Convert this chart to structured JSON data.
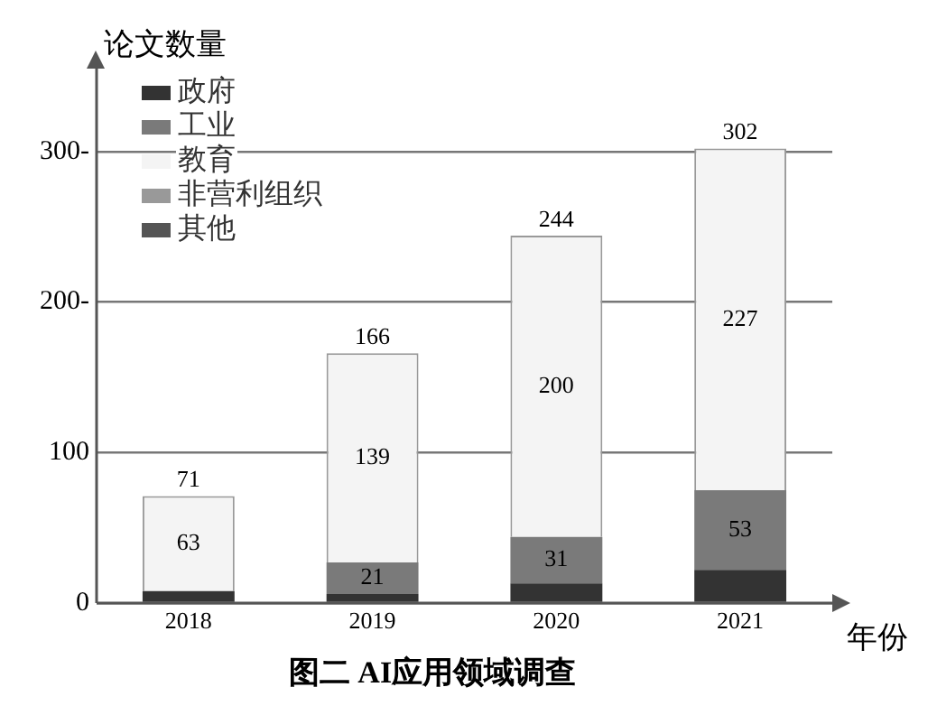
{
  "chart_data": {
    "type": "bar",
    "title": "图二 AI应用领域调查",
    "xlabel": "年份",
    "ylabel": "论文数量",
    "categories": [
      "2018",
      "2019",
      "2020",
      "2021"
    ],
    "stacked": true,
    "series": [
      {
        "name": "政府",
        "color": "#333333",
        "values": [
          8,
          6,
          13,
          22
        ]
      },
      {
        "name": "工业",
        "color": "#7a7a7a",
        "values": [
          0,
          21,
          31,
          53
        ],
        "value_labels": [
          null,
          "21",
          "31",
          "53"
        ]
      },
      {
        "name": "教育",
        "color": "#f4f4f4",
        "values": [
          63,
          139,
          200,
          227
        ],
        "value_labels": [
          "63",
          "139",
          "200",
          "227"
        ]
      },
      {
        "name": "非营利组织",
        "color": "#999999",
        "values": [
          null,
          null,
          null,
          null
        ]
      },
      {
        "name": "其他",
        "color": "#555555",
        "values": [
          null,
          null,
          null,
          null
        ]
      }
    ],
    "totals": [
      "71",
      "166",
      "244",
      "302"
    ],
    "ylim": [
      0,
      355
    ],
    "yticks": [
      {
        "value": 0,
        "label": "0"
      },
      {
        "value": 100,
        "label": "100"
      },
      {
        "value": 200,
        "label": "200-"
      },
      {
        "value": 300,
        "label": "300-"
      }
    ],
    "grid": "y",
    "legend": "top left"
  }
}
